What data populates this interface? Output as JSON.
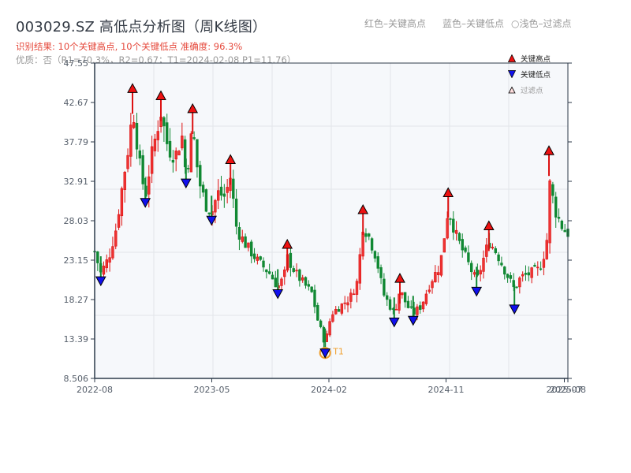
{
  "header": {
    "title": "003029.SZ 高低点分析图（周K线图）",
    "result_line": "识别结果: 10个关键高点, 10个关键低点   准确度: 96.3%",
    "quality_line": "优质：否（R1=70.3%，R2=0.67；T1=2024-02-08 P1=11.76）"
  },
  "top_legend": {
    "red": "红色–关键高点",
    "blue": "蓝色–关键低点",
    "light": "○浅色–过滤点"
  },
  "legend": {
    "items": [
      {
        "label": "关键高点",
        "marker": "triangle-up",
        "color": "#ee1111"
      },
      {
        "label": "关键低点",
        "marker": "triangle-down",
        "color": "#1111ee"
      },
      {
        "label": "过滤点",
        "marker": "triangle-up-outline",
        "color": "#ffcccc"
      }
    ]
  },
  "colors": {
    "up": "#dd1111",
    "down": "#118833",
    "high_marker": "#ee1111",
    "low_marker": "#1010ee",
    "t1_ring": "#f0a030",
    "grid": "#e2e5ea",
    "plot_bg": "#f6f8fb",
    "axis": "#2d3a4a"
  },
  "annotation": {
    "t1_label": "T1"
  },
  "chart_data": {
    "type": "candlestick",
    "title": "003029.SZ 高低点分析图（周K线图）",
    "xlabel": "",
    "ylabel": "",
    "ylim": [
      8.506,
      47.55
    ],
    "y_ticks": [
      "47.55",
      "42.67",
      "37.79",
      "32.91",
      "28.03",
      "23.15",
      "18.27",
      "13.39",
      "8.506"
    ],
    "x_ticks": [
      {
        "label": "2022-08",
        "pos": 0.0
      },
      {
        "label": "2023-05",
        "pos": 0.2475
      },
      {
        "label": "2024-02",
        "pos": 0.495
      },
      {
        "label": "2024-11",
        "pos": 0.7425
      },
      {
        "label": "2025-07",
        "pos": 0.9925
      },
      {
        "label": "2025-08",
        "pos": 1.0
      }
    ],
    "grid": true,
    "legend_position": "upper right",
    "key_highs": [
      {
        "pos": 0.08,
        "price": 44.2
      },
      {
        "pos": 0.14,
        "price": 43.3
      },
      {
        "pos": 0.207,
        "price": 41.7
      },
      {
        "pos": 0.287,
        "price": 35.4
      },
      {
        "pos": 0.407,
        "price": 24.9
      },
      {
        "pos": 0.567,
        "price": 29.2
      },
      {
        "pos": 0.645,
        "price": 20.7
      },
      {
        "pos": 0.747,
        "price": 31.3
      },
      {
        "pos": 0.833,
        "price": 27.2
      },
      {
        "pos": 0.96,
        "price": 36.5
      }
    ],
    "key_lows": [
      {
        "pos": 0.013,
        "price": 20.7
      },
      {
        "pos": 0.107,
        "price": 30.4
      },
      {
        "pos": 0.193,
        "price": 32.8
      },
      {
        "pos": 0.247,
        "price": 28.2
      },
      {
        "pos": 0.387,
        "price": 19.1
      },
      {
        "pos": 0.487,
        "price": 11.76,
        "label": "T1",
        "date": "2024-02-08"
      },
      {
        "pos": 0.633,
        "price": 15.6
      },
      {
        "pos": 0.673,
        "price": 15.8
      },
      {
        "pos": 0.807,
        "price": 19.4
      },
      {
        "pos": 0.887,
        "price": 17.2
      }
    ],
    "price_path": [
      [
        0.0,
        24.2
      ],
      [
        0.013,
        21.5
      ],
      [
        0.03,
        23.5
      ],
      [
        0.045,
        27.0
      ],
      [
        0.06,
        33.0
      ],
      [
        0.075,
        38.5
      ],
      [
        0.08,
        42.5
      ],
      [
        0.095,
        35.0
      ],
      [
        0.107,
        31.0
      ],
      [
        0.12,
        36.0
      ],
      [
        0.14,
        41.5
      ],
      [
        0.155,
        37.0
      ],
      [
        0.17,
        36.0
      ],
      [
        0.185,
        38.5
      ],
      [
        0.193,
        33.5
      ],
      [
        0.207,
        39.5
      ],
      [
        0.22,
        33.0
      ],
      [
        0.235,
        30.0
      ],
      [
        0.247,
        29.0
      ],
      [
        0.26,
        31.5
      ],
      [
        0.275,
        31.0
      ],
      [
        0.287,
        33.5
      ],
      [
        0.3,
        27.0
      ],
      [
        0.32,
        25.0
      ],
      [
        0.345,
        23.0
      ],
      [
        0.37,
        21.5
      ],
      [
        0.387,
        19.8
      ],
      [
        0.4,
        21.0
      ],
      [
        0.407,
        23.5
      ],
      [
        0.425,
        21.5
      ],
      [
        0.445,
        20.0
      ],
      [
        0.46,
        19.0
      ],
      [
        0.47,
        16.0
      ],
      [
        0.487,
        12.8
      ],
      [
        0.5,
        16.5
      ],
      [
        0.52,
        17.5
      ],
      [
        0.54,
        18.5
      ],
      [
        0.555,
        20.5
      ],
      [
        0.567,
        27.5
      ],
      [
        0.58,
        26.0
      ],
      [
        0.595,
        23.5
      ],
      [
        0.61,
        19.0
      ],
      [
        0.633,
        16.5
      ],
      [
        0.645,
        19.5
      ],
      [
        0.66,
        17.5
      ],
      [
        0.673,
        16.5
      ],
      [
        0.69,
        17.5
      ],
      [
        0.71,
        20.5
      ],
      [
        0.73,
        22.5
      ],
      [
        0.747,
        29.5
      ],
      [
        0.765,
        26.0
      ],
      [
        0.78,
        24.0
      ],
      [
        0.795,
        22.0
      ],
      [
        0.807,
        20.5
      ],
      [
        0.82,
        23.0
      ],
      [
        0.833,
        25.5
      ],
      [
        0.85,
        24.0
      ],
      [
        0.87,
        21.5
      ],
      [
        0.887,
        19.5
      ],
      [
        0.9,
        21.0
      ],
      [
        0.92,
        21.5
      ],
      [
        0.94,
        22.0
      ],
      [
        0.955,
        25.0
      ],
      [
        0.96,
        33.0
      ],
      [
        0.975,
        29.0
      ],
      [
        0.99,
        27.0
      ],
      [
        1.0,
        26.5
      ]
    ]
  }
}
